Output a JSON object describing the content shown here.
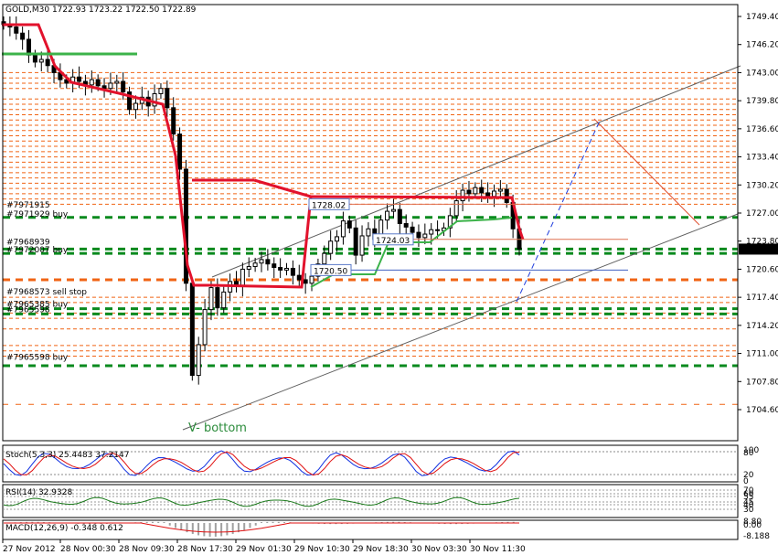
{
  "chart_data": {
    "type": "candlestick",
    "symbol_header": "GOLD,M30  1722.93 1723.22 1722.50 1722.89",
    "y_ticks": [
      "1749.40",
      "1746.20",
      "1743.00",
      "1739.80",
      "1736.60",
      "1733.40",
      "1730.20",
      "1727.00",
      "1723.80",
      "1720.60",
      "1717.40",
      "1714.20",
      "1711.00",
      "1707.80",
      "1704.60"
    ],
    "ylim": [
      1704.6,
      1749.4
    ],
    "current_price": "1722.89",
    "x_ticks": [
      "27 Nov 2012",
      "28 Nov 00:30",
      "28 Nov 09:30",
      "28 Nov 17:30",
      "29 Nov 01:30",
      "29 Nov 10:30",
      "29 Nov 18:30",
      "30 Nov 03:30",
      "30 Nov 11:30"
    ],
    "price_series": [
      1748.5,
      1748.2,
      1747.5,
      1746.8,
      1745.0,
      1744.2,
      1744.5,
      1743.8,
      1743.0,
      1742.2,
      1741.8,
      1742.5,
      1742.0,
      1741.6,
      1742.2,
      1741.5,
      1741.2,
      1741.8,
      1742.0,
      1740.8,
      1738.8,
      1739.5,
      1740.2,
      1739.2,
      1740.6,
      1741.2,
      1739.0,
      1736.0,
      1732.0,
      1719.0,
      1708.5,
      1712.0,
      1716.0,
      1718.5,
      1716.2,
      1718.0,
      1719.2,
      1718.7,
      1720.6,
      1720.9,
      1721.3,
      1721.7,
      1721.2,
      1720.8,
      1720.5,
      1720.7,
      1719.9,
      1719.4,
      1719.0,
      1719.8,
      1721.2,
      1722.4,
      1723.8,
      1724.3,
      1726.1,
      1725.3,
      1722.2,
      1724.4,
      1725.2,
      1724.0,
      1726.2,
      1727.2,
      1727.4,
      1725.8,
      1725.4,
      1724.8,
      1724.2,
      1724.6,
      1725.1,
      1725.0,
      1725.3,
      1726.7,
      1728.4,
      1729.6,
      1729.2,
      1729.9,
      1729.3,
      1728.9,
      1729.5,
      1729.7,
      1728.2,
      1725.2,
      1722.9
    ],
    "levels": {
      "orange_dashed": [
        1743.0,
        1742.4,
        1741.8,
        1741.2,
        1740.0,
        1739.4,
        1738.8,
        1738.2,
        1737.6,
        1737.0,
        1736.4,
        1735.8,
        1735.2,
        1734.6,
        1734.0,
        1733.4,
        1732.8,
        1732.2,
        1731.6,
        1731.0,
        1730.4,
        1729.8,
        1729.2,
        1728.6,
        1728.0,
        1717.4,
        1716.8,
        1715.6,
        1715.0,
        1713.8,
        1711.9,
        1711.3,
        1710.7
      ],
      "green_dashed": [
        1726.5,
        1722.9,
        1722.4,
        1716.1,
        1715.5,
        1709.6
      ],
      "orange_heavy": [
        1719.4
      ],
      "orange_sparse": [
        1705.2
      ]
    },
    "order_labels": [
      {
        "text": "#7971929 buy",
        "price": 1726.5
      },
      {
        "text": "#7972007 buy",
        "price": 1722.4
      },
      {
        "text": "#7968573 sell stop",
        "price": 1717.6
      },
      {
        "text": "#7965385 buy",
        "price": 1716.2
      },
      {
        "text": "#7965598 buy",
        "price": 1710.2
      }
    ],
    "faint_labels": [
      {
        "text": "#7971915",
        "price": 1727.5
      },
      {
        "text": "#7968939",
        "price": 1723.3
      },
      {
        "text": "#7965598",
        "price": 1715.6
      }
    ],
    "boxed_labels": [
      {
        "text": "1728.02",
        "price": 1728.0
      },
      {
        "text": "1724.03",
        "price": 1724.0
      },
      {
        "text": "1720.50",
        "price": 1720.5
      }
    ],
    "annotation": "V- bottom",
    "indicators": {
      "stoch": {
        "label": "Stoch(5,3,3) 25.4483 37.2147",
        "ticks": [
          "100",
          "80",
          "20",
          "0"
        ]
      },
      "rsi": {
        "label": "RSI(14) 32.9328",
        "ticks": [
          "70",
          "60",
          "55",
          "45",
          "40",
          "30"
        ]
      },
      "macd": {
        "label": "MACD(12,26,9) -0.348 0.612",
        "ticks": [
          "8.80",
          "0.00",
          "-8.188"
        ]
      }
    },
    "colors": {
      "up": "#000000",
      "trend_red": "#e2122c",
      "trend_green": "#3cb34a",
      "level_orange": "#f06414",
      "level_green": "#0a8a1e",
      "channel": "#606060",
      "blue_dash": "#1e3cdc"
    }
  }
}
